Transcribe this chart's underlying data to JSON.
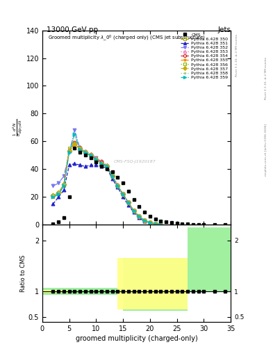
{
  "title_top": "13000 GeV pp",
  "title_right": "Jets",
  "plot_title": "Groomed multiplicity $\\lambda\\_0^0$ (charged only) (CMS jet substructure)",
  "ylabel_main": "$\\frac{1}{\\mathrm{d}N}\\,/\\,\\mathrm{d}\\,p_T\\,\\mathrm{d}\\,\\lambda$",
  "ylabel_ratio": "Ratio to CMS",
  "xlabel": "groomed multiplicity (charged-only)",
  "watermark": "CMS-FSQ-J1920187",
  "right_label": "mcplots.cern.ch [arXiv:1306.3436]",
  "rivet_label": "Rivet 3.1.10, ≥ 2.9M events",
  "cms_x": [
    2,
    3,
    4,
    5,
    6,
    7,
    8,
    9,
    10,
    11,
    12,
    13,
    14,
    15,
    16,
    17,
    18,
    19,
    20,
    21,
    22,
    23,
    24,
    25,
    26,
    27,
    28,
    29,
    30,
    32,
    34
  ],
  "cms_y": [
    0.5,
    2,
    5,
    20,
    55,
    52,
    50,
    48,
    45,
    42,
    40,
    38,
    34,
    30,
    24,
    18,
    13,
    9,
    6,
    4,
    2.5,
    2,
    1.5,
    1,
    0.8,
    0.5,
    0.3,
    0.2,
    0.15,
    0.1,
    0.05
  ],
  "series": [
    {
      "label": "Pythia 6.428 350",
      "color": "#aaaa00",
      "marker": "s",
      "linestyle": "--",
      "x": [
        2,
        3,
        4,
        5,
        6,
        7,
        8,
        9,
        10,
        11,
        12,
        13,
        14,
        15,
        16,
        17,
        18,
        19,
        20,
        21,
        22
      ],
      "y": [
        20,
        22,
        28,
        55,
        58,
        55,
        52,
        50,
        48,
        45,
        42,
        35,
        28,
        22,
        16,
        10,
        6,
        3,
        1.5,
        0.8,
        0.3
      ],
      "open_marker": true
    },
    {
      "label": "Pythia 6.428 351",
      "color": "#2222cc",
      "marker": "^",
      "linestyle": "--",
      "x": [
        2,
        3,
        4,
        5,
        6,
        7,
        8,
        9,
        10,
        11,
        12,
        13,
        14,
        15,
        16,
        17,
        18,
        19,
        20,
        21,
        22
      ],
      "y": [
        15,
        20,
        25,
        43,
        44,
        43,
        42,
        43,
        43,
        42,
        41,
        33,
        27,
        20,
        14,
        9,
        5,
        2.5,
        1.2,
        0.6,
        0.2
      ],
      "open_marker": false
    },
    {
      "label": "Pythia 6.428 352",
      "color": "#7777ee",
      "marker": "v",
      "linestyle": "-.",
      "x": [
        2,
        3,
        4,
        5,
        6,
        7,
        8,
        9,
        10,
        11,
        12,
        13,
        14,
        15,
        16,
        17,
        18,
        19,
        20,
        21,
        22
      ],
      "y": [
        28,
        30,
        35,
        52,
        68,
        55,
        52,
        50,
        48,
        45,
        42,
        35,
        28,
        22,
        16,
        10,
        6,
        3,
        1.5,
        0.8,
        0.3
      ],
      "open_marker": false
    },
    {
      "label": "Pythia 6.428 353",
      "color": "#ee66aa",
      "marker": "^",
      "linestyle": ":",
      "x": [
        2,
        3,
        4,
        5,
        6,
        7,
        8,
        9,
        10,
        11,
        12,
        13,
        14,
        15,
        16,
        17,
        18,
        19,
        20,
        21,
        22
      ],
      "y": [
        21,
        23,
        29,
        53,
        59,
        56,
        53,
        51,
        48,
        46,
        43,
        36,
        29,
        22,
        16,
        10,
        6,
        3,
        1.5,
        0.8,
        0.3
      ],
      "open_marker": true
    },
    {
      "label": "Pythia 6.428 354",
      "color": "#cc2222",
      "marker": "o",
      "linestyle": "--",
      "x": [
        2,
        3,
        4,
        5,
        6,
        7,
        8,
        9,
        10,
        11,
        12,
        13,
        14,
        15,
        16,
        17,
        18,
        19,
        20,
        21,
        22
      ],
      "y": [
        21,
        23,
        29,
        53,
        59,
        55,
        52,
        50,
        47,
        45,
        42,
        35,
        28,
        22,
        16,
        10,
        6,
        3,
        1.5,
        0.8,
        0.3
      ],
      "open_marker": true
    },
    {
      "label": "Pythia 6.428 355",
      "color": "#ff8800",
      "marker": "*",
      "linestyle": "--",
      "x": [
        2,
        3,
        4,
        5,
        6,
        7,
        8,
        9,
        10,
        11,
        12,
        13,
        14,
        15,
        16,
        17,
        18,
        19,
        20,
        21,
        22
      ],
      "y": [
        21,
        23,
        29,
        54,
        58,
        55,
        52,
        50,
        47,
        44,
        41,
        35,
        28,
        22,
        16,
        10,
        6,
        3,
        1.5,
        0.8,
        0.3
      ],
      "open_marker": false
    },
    {
      "label": "Pythia 6.428 356",
      "color": "#88bb00",
      "marker": "s",
      "linestyle": ":",
      "x": [
        2,
        3,
        4,
        5,
        6,
        7,
        8,
        9,
        10,
        11,
        12,
        13,
        14,
        15,
        16,
        17,
        18,
        19,
        20,
        21,
        22
      ],
      "y": [
        21,
        23,
        29,
        53,
        58,
        55,
        52,
        50,
        47,
        44,
        42,
        35,
        28,
        22,
        16,
        10,
        6,
        3,
        1.5,
        0.8,
        0.3
      ],
      "open_marker": true
    },
    {
      "label": "Pythia 6.428 357",
      "color": "#ccaa00",
      "marker": "D",
      "linestyle": "-.",
      "x": [
        2,
        3,
        4,
        5,
        6,
        7,
        8,
        9,
        10,
        11,
        12,
        13,
        14,
        15,
        16,
        17,
        18,
        19,
        20,
        21,
        22
      ],
      "y": [
        21,
        23,
        29,
        53,
        58,
        54,
        52,
        50,
        47,
        44,
        42,
        35,
        28,
        22,
        16,
        10,
        6,
        3,
        1.5,
        0.8,
        0.3
      ],
      "open_marker": false
    },
    {
      "label": "Pythia 6.428 358",
      "color": "#99cc88",
      "marker": ".",
      "linestyle": ":",
      "x": [
        2,
        3,
        4,
        5,
        6,
        7,
        8,
        9,
        10,
        11,
        12,
        13,
        14,
        15,
        16,
        17,
        18,
        19,
        20,
        21,
        22
      ],
      "y": [
        21,
        23,
        29,
        52,
        65,
        54,
        52,
        50,
        47,
        44,
        42,
        35,
        28,
        22,
        16,
        10,
        6,
        3,
        1.5,
        0.8,
        0.3
      ],
      "open_marker": false
    },
    {
      "label": "Pythia 6.428 359",
      "color": "#00bbbb",
      "marker": ">",
      "linestyle": "-.",
      "x": [
        2,
        3,
        4,
        5,
        6,
        7,
        8,
        9,
        10,
        11,
        12,
        13,
        14,
        15,
        16,
        17,
        18,
        19,
        20,
        21,
        22
      ],
      "y": [
        20,
        22,
        28,
        52,
        65,
        54,
        52,
        50,
        47,
        44,
        42,
        35,
        28,
        22,
        16,
        10,
        6,
        3,
        1.5,
        0.8,
        0.3
      ],
      "open_marker": false
    }
  ],
  "ylim_main": [
    0,
    140
  ],
  "xlim": [
    0,
    35
  ],
  "yticks_main": [
    0,
    20,
    40,
    60,
    80,
    100,
    120,
    140
  ],
  "xticks": [
    0,
    5,
    10,
    15,
    20,
    25,
    30,
    35
  ],
  "ratio_ylim": [
    0.4,
    2.3
  ],
  "ratio_yticks": [
    0.5,
    1.0,
    2.0
  ],
  "green_color": "#90EE90",
  "yellow_color": "#FFFF88",
  "background_color": "#ffffff"
}
